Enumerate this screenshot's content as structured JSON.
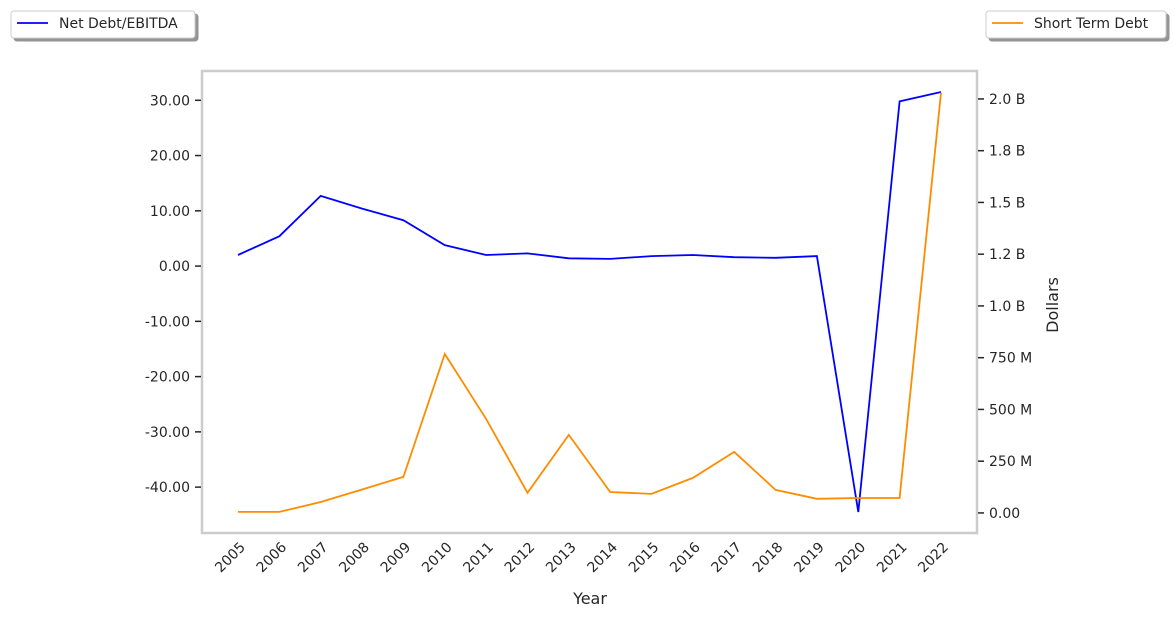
{
  "chart_data": {
    "type": "line",
    "title": "",
    "xlabel": "Year",
    "ylabel_left": "",
    "ylabel_right": "Dollars",
    "x": [
      2005,
      2006,
      2007,
      2008,
      2009,
      2010,
      2011,
      2012,
      2013,
      2014,
      2015,
      2016,
      2017,
      2018,
      2019,
      2020,
      2021,
      2022
    ],
    "x_tick_labels": [
      "2005",
      "2006",
      "2007",
      "2008",
      "2009",
      "2010",
      "2011",
      "2012",
      "2013",
      "2014",
      "2015",
      "2016",
      "2017",
      "2018",
      "2019",
      "2020",
      "2021",
      "2022"
    ],
    "ylim_left": [
      -48.3,
      35.3
    ],
    "ylim_right_billions": [
      -0.097,
      2.135
    ],
    "left_ticks": [
      30,
      20,
      10,
      0,
      -10,
      -20,
      -30,
      -40
    ],
    "left_tick_labels": [
      "30.00",
      "20.00",
      "10.00",
      "0.00",
      "-10.00",
      "-20.00",
      "-30.00",
      "-40.00"
    ],
    "right_ticks_billions": [
      2.0,
      1.75,
      1.5,
      1.25,
      1.0,
      0.75,
      0.5,
      0.25,
      0
    ],
    "right_tick_labels": [
      "2.0 B",
      "1.8 B",
      "1.5 B",
      "1.2 B",
      "1.0 B",
      "750 M",
      "500 M",
      "250 M",
      "0.00"
    ],
    "grid": false,
    "series": [
      {
        "name": "Net Debt/EBITDA",
        "axis": "left",
        "color": "#0000ff",
        "values": [
          2.0,
          5.4,
          12.7,
          10.4,
          8.3,
          3.8,
          2.0,
          2.3,
          1.4,
          1.3,
          1.8,
          2.0,
          1.6,
          1.5,
          1.8,
          -44.5,
          29.8,
          31.5
        ]
      },
      {
        "name": "Short Term Debt",
        "axis": "right",
        "unit": "billions USD",
        "color": "#ff8c00",
        "values": [
          0.005,
          0.005,
          0.053,
          0.113,
          0.174,
          0.768,
          0.454,
          0.097,
          0.377,
          0.101,
          0.092,
          0.169,
          0.295,
          0.111,
          0.068,
          0.072,
          0.072,
          2.03
        ]
      }
    ],
    "legend": [
      {
        "label": "Net Debt/EBITDA",
        "placement": "top-left"
      },
      {
        "label": "Short Term Debt",
        "placement": "top-right"
      }
    ]
  }
}
